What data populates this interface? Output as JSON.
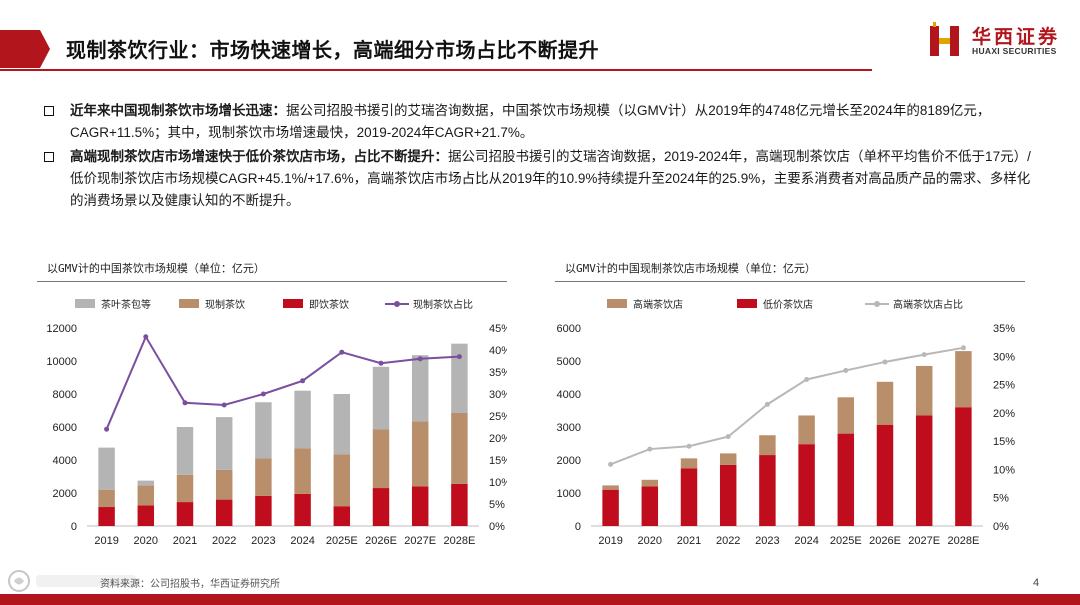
{
  "header": {
    "title": "现制茶饮行业：市场快速增长，高端细分市场占比不断提升",
    "logo_cn": "华西证券",
    "logo_en": "HUAXI SECURITIES"
  },
  "bullets": [
    {
      "lead": "近年来中国现制茶饮市场增长迅速：",
      "body": "据公司招股书援引的艾瑞咨询数据，中国茶饮市场规模（以GMV计）从2019年的4748亿元增长至2024年的8189亿元，CAGR+11.5%；其中，现制茶饮市场增速最快，2019-2024年CAGR+21.7%。"
    },
    {
      "lead": "高端现制茶饮店市场增速快于低价茶饮店市场，占比不断提升：",
      "body": "据公司招股书援引的艾瑞咨询数据，2019-2024年，高端现制茶饮店（单杯平均售价不低于17元）/低价现制茶饮店市场规模CAGR+45.1%/+17.6%，高端茶饮店市场占比从2019年的10.9%持续提升至2024年的25.9%，主要系消费者对高品质产品的需求、多样化的消费场景以及健康认知的不断提升。"
    }
  ],
  "colors": {
    "brand_red": "#b3151c",
    "gray_bar": "#b4b4b4",
    "tan_bar": "#b88f6a",
    "red_bar": "#c00d1e",
    "purple_line": "#7a4fa0",
    "gray_line": "#b8b8b8"
  },
  "chart_data": [
    {
      "type": "bar",
      "stacked": true,
      "title": "以GMV计的中国茶饮市场规模（单位：亿元）",
      "categories": [
        "2019",
        "2020",
        "2021",
        "2022",
        "2023",
        "2024",
        "2025E",
        "2026E",
        "2027E",
        "2028E"
      ],
      "series": [
        {
          "name": "即饮茶饮",
          "color": "#c00d1e",
          "values": [
            1150,
            1250,
            1450,
            1600,
            1830,
            1950,
            1200,
            2300,
            2400,
            2550
          ]
        },
        {
          "name": "现制茶饮",
          "color": "#b88f6a",
          "values": [
            1050,
            1200,
            1650,
            1800,
            2270,
            2750,
            3150,
            3550,
            3950,
            4300
          ]
        },
        {
          "name": "茶叶茶包等",
          "color": "#b4b4b4",
          "values": [
            2550,
            300,
            2900,
            3200,
            3400,
            3500,
            3650,
            3800,
            4000,
            4200
          ]
        }
      ],
      "line": {
        "name": "现制茶饮占比",
        "color": "#7a4fa0",
        "axis": "right",
        "values": [
          22,
          43,
          28,
          27.5,
          30,
          33,
          39.5,
          37,
          38,
          38.5
        ]
      },
      "ylim_left": [
        0,
        12000
      ],
      "yticks_left": [
        "0",
        "2000",
        "4000",
        "6000",
        "8000",
        "10000",
        "12000"
      ],
      "ylim_right": [
        0,
        45
      ],
      "yticks_right": [
        "0%",
        "5%",
        "10%",
        "15%",
        "20%",
        "25%",
        "30%",
        "35%",
        "40%",
        "45%"
      ],
      "legend_order": [
        "茶叶茶包等",
        "现制茶饮",
        "即饮茶饮",
        "现制茶饮占比"
      ]
    },
    {
      "type": "bar",
      "stacked": true,
      "title": "以GMV计的中国现制茶饮店市场规模（单位：亿元）",
      "categories": [
        "2019",
        "2020",
        "2021",
        "2022",
        "2023",
        "2024",
        "2025E",
        "2026E",
        "2027E",
        "2028E"
      ],
      "series": [
        {
          "name": "低价茶饮店",
          "color": "#c00d1e",
          "values": [
            1100,
            1200,
            1750,
            1850,
            2150,
            2480,
            2800,
            3070,
            3350,
            3600
          ]
        },
        {
          "name": "高端茶饮店",
          "color": "#b88f6a",
          "values": [
            130,
            200,
            300,
            350,
            600,
            870,
            1100,
            1300,
            1500,
            1700
          ]
        }
      ],
      "line": {
        "name": "高端茶饮店占比",
        "color": "#b8b8b8",
        "axis": "right",
        "values": [
          10.9,
          13.6,
          14.1,
          15.8,
          21.5,
          25.9,
          27.5,
          29,
          30.3,
          31.5
        ]
      },
      "ylim_left": [
        0,
        6000
      ],
      "yticks_left": [
        "0",
        "1000",
        "2000",
        "3000",
        "4000",
        "5000",
        "6000"
      ],
      "ylim_right": [
        0,
        35
      ],
      "yticks_right": [
        "0%",
        "5%",
        "10%",
        "15%",
        "20%",
        "25%",
        "30%",
        "35%"
      ],
      "legend_order": [
        "高端茶饮店",
        "低价茶饮店",
        "高端茶饮店占比"
      ]
    }
  ],
  "footer": {
    "source": "资料来源：公司招股书，华西证券研究所",
    "page_number": "4"
  }
}
